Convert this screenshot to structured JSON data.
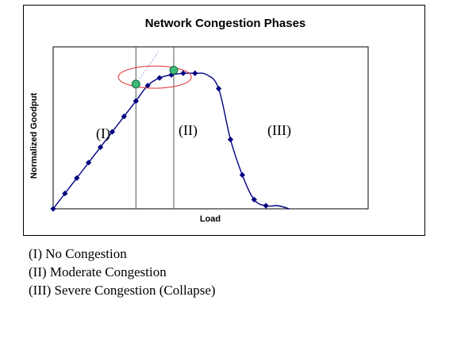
{
  "chart_data": {
    "type": "line",
    "title": "Network Congestion Phases",
    "xlabel": "Load",
    "ylabel": "Normalized Goodput",
    "series": [
      {
        "x": [
          0,
          1,
          2,
          3,
          4,
          5,
          6,
          7,
          8,
          9,
          10,
          11,
          12,
          13,
          14,
          15,
          16,
          17,
          18,
          19,
          20
        ],
        "y": [
          0,
          0.1,
          0.2,
          0.3,
          0.4,
          0.5,
          0.6,
          0.7,
          0.8,
          0.85,
          0.87,
          0.88,
          0.88,
          0.87,
          0.78,
          0.45,
          0.22,
          0.06,
          0.02,
          0.02,
          0.0
        ]
      }
    ],
    "markers": [
      0,
      1,
      2,
      3,
      4,
      5,
      6,
      7,
      8,
      9,
      10,
      11,
      12,
      14,
      15,
      16,
      17,
      18
    ],
    "xlim": [
      0,
      20
    ],
    "ylim": [
      0,
      1
    ],
    "phase_boundaries": [
      7,
      10.2
    ],
    "knee_points": [
      {
        "x": 7,
        "y": 0.81
      },
      {
        "x": 10.2,
        "y": 0.9
      }
    ],
    "phase_labels": [
      "(I)",
      "(II)",
      "(III)"
    ],
    "colors": {
      "line": "#00007f",
      "marker": "#000080",
      "knee": "#3cb878",
      "ellipse": "#e03030",
      "extension": "#8aa0e0"
    }
  },
  "legend": {
    "items": [
      "(I) No Congestion",
      "(II) Moderate Congestion",
      "(III) Severe Congestion (Collapse)"
    ]
  }
}
